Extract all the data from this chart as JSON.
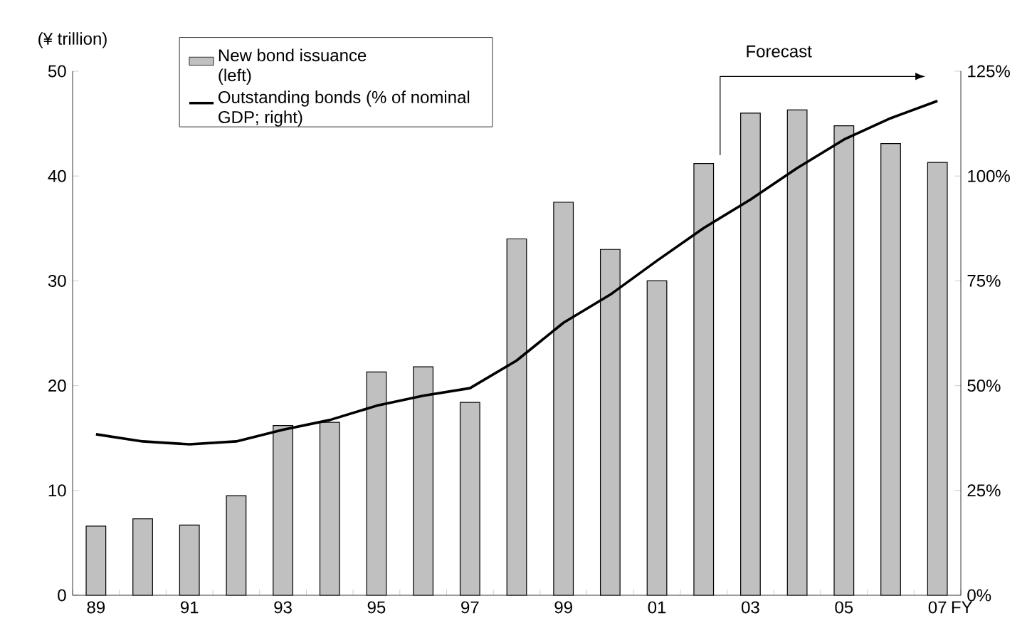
{
  "chart_data": {
    "type": "bar",
    "ylabel": "(¥ trillion)",
    "xlabel": "FY",
    "categories": [
      "89",
      null,
      "91",
      null,
      "93",
      null,
      "95",
      null,
      "97",
      null,
      "99",
      null,
      "01",
      null,
      "03",
      null,
      "05",
      null,
      "07"
    ],
    "series": [
      {
        "name": "New bond issuance (left)",
        "type": "bar",
        "color": "#c0c0c0",
        "values": [
          6.6,
          7.3,
          6.7,
          9.5,
          16.2,
          16.5,
          21.3,
          21.8,
          18.4,
          34.0,
          37.5,
          33.0,
          30.0,
          41.2,
          46.0,
          46.3,
          44.8,
          43.1,
          41.3
        ]
      },
      {
        "name": "Outstanding bonds (% of nominal GDP; right)",
        "type": "line",
        "axis": "y2",
        "color": "#000000",
        "values": [
          38.4,
          36.7,
          36.0,
          36.7,
          39.5,
          41.8,
          45.2,
          47.6,
          49.4,
          56.0,
          65.0,
          71.7,
          79.8,
          87.6,
          94.4,
          101.9,
          108.7,
          113.8,
          117.9
        ]
      }
    ],
    "ylim": [
      0,
      50
    ],
    "yticks": [
      0,
      10,
      20,
      30,
      40,
      50
    ],
    "y2lim": [
      0,
      125
    ],
    "y2ticks": [
      {
        "value": 0,
        "label": "0%"
      },
      {
        "value": 25,
        "label": "25%"
      },
      {
        "value": 50,
        "label": "50%"
      },
      {
        "value": 75,
        "label": "75%"
      },
      {
        "value": 100,
        "label": "100%"
      },
      {
        "value": 125,
        "label": "125%"
      }
    ],
    "annotations": [
      "Forecast"
    ],
    "legend": "top left",
    "grid": false
  }
}
